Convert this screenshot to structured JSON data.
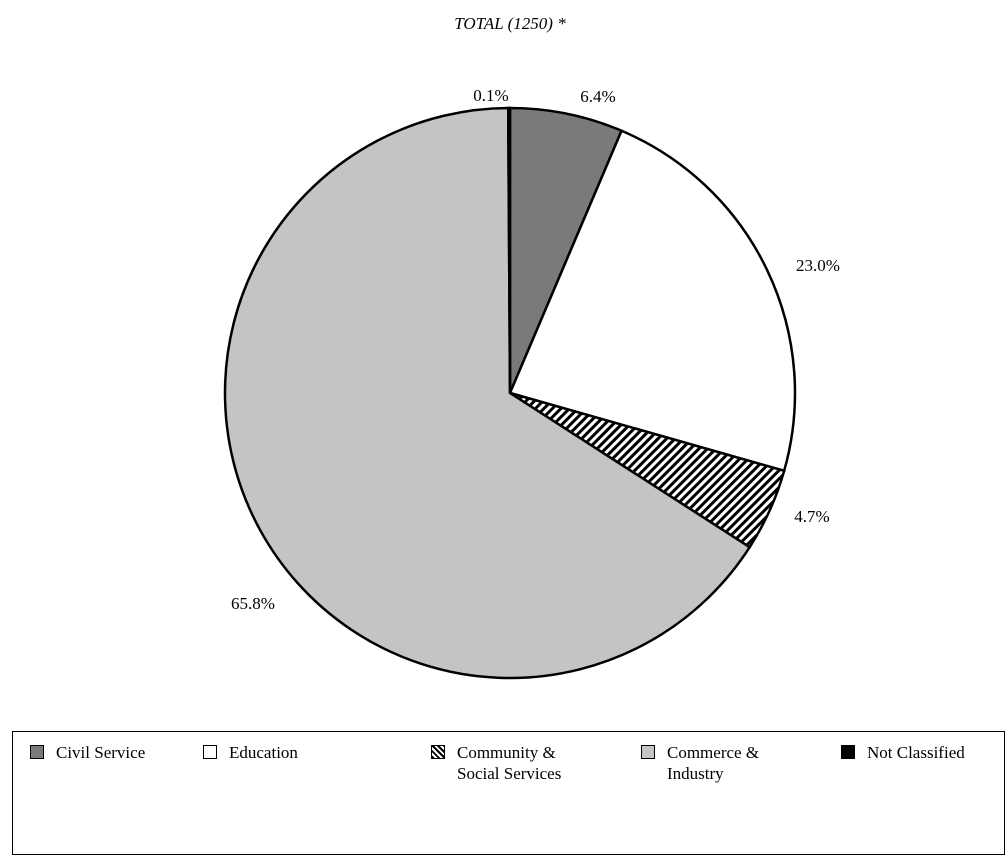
{
  "chart_data": {
    "type": "pie",
    "title": "TOTAL (1250) *",
    "categories": [
      "Civil Service",
      "Education",
      "Community & Social Services",
      "Commerce & Industry",
      "Not Classified"
    ],
    "values": [
      6.4,
      23.0,
      4.7,
      65.8,
      0.1
    ],
    "value_labels": [
      "6.4%",
      "23.0%",
      "4.7%",
      "65.8%",
      "0.1%"
    ],
    "colors": [
      "#7a7a7a",
      "#ffffff",
      "#ffffff",
      "#c4c4c4",
      "#000000"
    ]
  }
}
